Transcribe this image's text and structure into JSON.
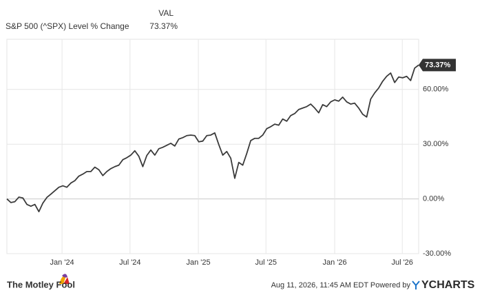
{
  "chart_data": {
    "type": "line",
    "header": {
      "column": "VAL"
    },
    "series": [
      {
        "name": "S&P 500 (^SPX) Level % Change",
        "color": "#3a3a3a",
        "values": [
          0,
          -2,
          -1.5,
          1,
          0.5,
          -3,
          -4,
          -3,
          -7,
          -2.3,
          0.8,
          2.6,
          4.5,
          6.4,
          7.2,
          6.4,
          8.7,
          10,
          12.5,
          13.6,
          15,
          15,
          17.4,
          16,
          12.8,
          15,
          16.6,
          17.7,
          18.5,
          21.5,
          22.6,
          24,
          26.4,
          23.4,
          17.7,
          23.8,
          26.8,
          24,
          27.5,
          28.3,
          29.4,
          30.5,
          29,
          32.8,
          33.6,
          34.7,
          35,
          34.7,
          31.3,
          31.7,
          34.7,
          35,
          36.2,
          29.8,
          24,
          26,
          22.3,
          11.3,
          20,
          18.5,
          24.9,
          32,
          33.2,
          33.2,
          35,
          38.5,
          39.6,
          41,
          40.4,
          43.8,
          42.6,
          45.7,
          46.8,
          49,
          49.8,
          50.6,
          52,
          49.8,
          47.2,
          51.7,
          50.6,
          53.2,
          54.3,
          53.6,
          55.8,
          53.2,
          52,
          52.5,
          49.8,
          46.4,
          44.9,
          54.7,
          58.1,
          60.8,
          64.5,
          67.2,
          69,
          63.8,
          66.8,
          66.4,
          67.2,
          64.9,
          71.7,
          73.37
        ]
      }
    ],
    "current": {
      "value": 73.37,
      "label": "73.37%"
    },
    "xlim": [
      0,
      103
    ],
    "xticks": [
      {
        "value": 13.8,
        "label": "Jan '24"
      },
      {
        "value": 30.8,
        "label": "Jul '24"
      },
      {
        "value": 47.9,
        "label": "Jan '25"
      },
      {
        "value": 64.8,
        "label": "Jul '25"
      },
      {
        "value": 82.0,
        "label": "Jan '26"
      },
      {
        "value": 98.9,
        "label": "Jul '26"
      }
    ],
    "ylim": [
      -30,
      87.5
    ],
    "yticks": [
      {
        "value": -30,
        "label": "-30.00%"
      },
      {
        "value": 0,
        "label": "0.00%"
      },
      {
        "value": 30,
        "label": "30.00%"
      },
      {
        "value": 60,
        "label": "60.00%"
      }
    ],
    "grid": true,
    "footer": {
      "brand": "The Motley Fool",
      "timestamp": "Aug 11, 2026, 11:45 AM EDT Powered by",
      "provider": "YCHARTS"
    }
  }
}
